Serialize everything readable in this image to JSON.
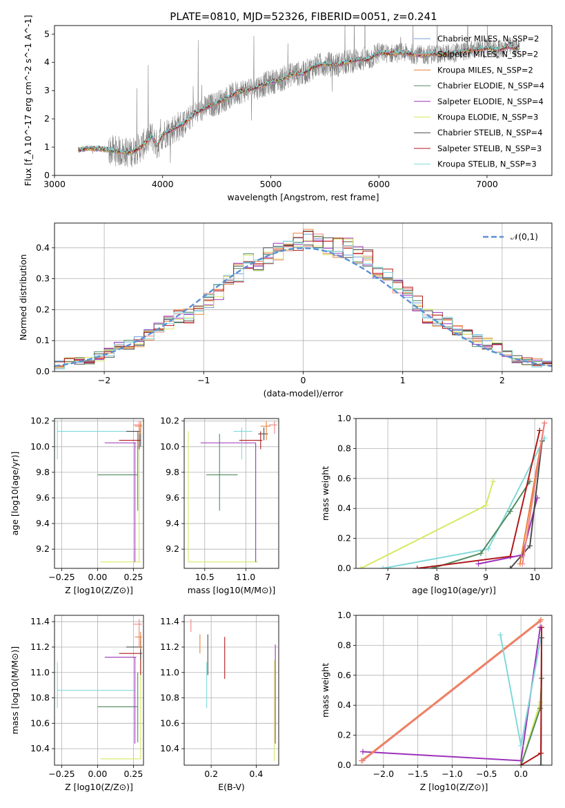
{
  "figure_title": "PLATE=0810, MJD=52326, FIBERID=0051, z=0.241",
  "colors": {
    "chabrier_miles": "#6f9fd8",
    "salpeter_miles": "#f08080",
    "kroupa_miles": "#e8823a",
    "chabrier_elodie": "#4e8a5e",
    "salpeter_elodie": "#9b30b8",
    "kroupa_elodie": "#d8e860",
    "chabrier_stelib": "#4a4a4a",
    "salpeter_stelib": "#b01818",
    "kroupa_stelib": "#80d8d8",
    "data_spectrum": "#808080",
    "normal_curve": "#5b8fd6"
  },
  "chart_data": [
    {
      "id": "spectrum",
      "type": "line",
      "title": "PLATE=0810, MJD=52326, FIBERID=0051, z=0.241",
      "xlabel": "wavelength [Angstrom, rest frame]",
      "ylabel": "Flux [f_λ 10^-17 erg cm^-2 s^-1 A^-1]",
      "xlim": [
        3000,
        7600
      ],
      "ylim": [
        0,
        5.3
      ],
      "xticks": [
        "3000",
        "4000",
        "5000",
        "6000",
        "7000"
      ],
      "yticks": [
        "0",
        "1",
        "2",
        "3",
        "4",
        "5"
      ],
      "legend_position": "right",
      "legend": [
        "Chabrier MILES, N_SSP=2",
        "Salpeter MILES, N_SSP=2",
        "Kroupa MILES, N_SSP=2",
        "Chabrier ELODIE, N_SSP=4",
        "Salpeter ELODIE, N_SSP=4",
        "Kroupa ELODIE, N_SSP=3",
        "Chabrier STELIB, N_SSP=4",
        "Salpeter STELIB, N_SSP=3",
        "Kroupa STELIB, N_SSP=3"
      ],
      "model_continuum": {
        "x": [
          3220,
          3300,
          3400,
          3500,
          3600,
          3700,
          3800,
          3900,
          3950,
          4000,
          4100,
          4200,
          4300,
          4400,
          4500,
          4600,
          4700,
          4800,
          4900,
          5000,
          5100,
          5200,
          5300,
          5400,
          5500,
          5600,
          5700,
          5800,
          5900,
          6000,
          6100,
          6200,
          6300,
          6400,
          6500,
          6600,
          6700,
          6800,
          6900,
          7000,
          7100,
          7200,
          7300
        ],
        "y": [
          0.9,
          0.95,
          0.95,
          0.9,
          0.85,
          0.8,
          1.0,
          1.4,
          1.05,
          1.45,
          1.65,
          1.85,
          2.2,
          2.4,
          2.55,
          2.75,
          2.95,
          3.05,
          3.15,
          3.3,
          3.4,
          3.6,
          3.6,
          3.85,
          3.95,
          3.9,
          4.0,
          4.1,
          4.1,
          4.35,
          4.3,
          4.35,
          4.3,
          4.25,
          4.3,
          4.3,
          4.35,
          4.4,
          4.45,
          4.5,
          4.45,
          4.55,
          4.5
        ]
      }
    },
    {
      "id": "residuals",
      "type": "histogram",
      "xlabel": "(data-model)/error",
      "ylabel": "Normed distribution",
      "xlim": [
        -2.5,
        2.5
      ],
      "ylim": [
        0,
        0.48
      ],
      "xticks": [
        "−2",
        "−1",
        "0",
        "1",
        "2"
      ],
      "yticks": [
        "0.0",
        "0.1",
        "0.2",
        "0.3",
        "0.4"
      ],
      "legend": [
        "𝒩(0,1)"
      ],
      "legend_position": "upper right",
      "bin_edges": [
        -2.5,
        -2.4,
        -2.3,
        -2.2,
        -2.1,
        -2.0,
        -1.9,
        -1.8,
        -1.7,
        -1.6,
        -1.5,
        -1.4,
        -1.3,
        -1.2,
        -1.1,
        -1.0,
        -0.9,
        -0.8,
        -0.7,
        -0.6,
        -0.5,
        -0.4,
        -0.3,
        -0.2,
        -0.1,
        0.0,
        0.1,
        0.2,
        0.3,
        0.4,
        0.5,
        0.6,
        0.7,
        0.8,
        0.9,
        1.0,
        1.1,
        1.2,
        1.3,
        1.4,
        1.5,
        1.6,
        1.7,
        1.8,
        1.9,
        2.0,
        2.1,
        2.2,
        2.3,
        2.4,
        2.5
      ],
      "base_values": [
        0.02,
        0.03,
        0.04,
        0.04,
        0.05,
        0.06,
        0.08,
        0.09,
        0.1,
        0.12,
        0.14,
        0.16,
        0.18,
        0.18,
        0.2,
        0.23,
        0.26,
        0.3,
        0.32,
        0.36,
        0.35,
        0.38,
        0.39,
        0.4,
        0.42,
        0.43,
        0.42,
        0.41,
        0.4,
        0.4,
        0.38,
        0.37,
        0.33,
        0.31,
        0.28,
        0.25,
        0.22,
        0.18,
        0.17,
        0.16,
        0.14,
        0.12,
        0.1,
        0.09,
        0.08,
        0.06,
        0.04,
        0.03,
        0.03,
        0.02
      ]
    },
    {
      "id": "age_vs_Z",
      "type": "errorbar",
      "xlabel": "Z [log10(Z/Z⊙)]",
      "ylabel": "age [log10(age/yr)]",
      "xlim": [
        -0.3,
        0.32
      ],
      "ylim": [
        9.05,
        10.22
      ],
      "xticks": [
        "−0.25",
        "0.00",
        "0.25"
      ],
      "yticks": [
        "9.2",
        "9.4",
        "9.6",
        "9.8",
        "10.0",
        "10.2"
      ]
    },
    {
      "id": "age_vs_mass",
      "type": "errorbar",
      "xlabel": "mass [log10(M/M⊙)]",
      "ylabel": "",
      "xlim": [
        10.25,
        11.4
      ],
      "ylim": [
        9.05,
        10.22
      ],
      "xticks": [
        "10.5",
        "11.0"
      ],
      "yticks": [
        "9.2",
        "9.4",
        "9.6",
        "9.8",
        "10.0",
        "10.2"
      ]
    },
    {
      "id": "massweight_vs_age",
      "type": "line",
      "xlabel": "age [log10(age/yr)]",
      "ylabel": "mass weight",
      "xlim": [
        6.35,
        10.35
      ],
      "ylim": [
        0,
        1.0
      ],
      "xticks": [
        "7",
        "8",
        "9",
        "10"
      ],
      "yticks": [
        "0.0",
        "0.2",
        "0.4",
        "0.6",
        "0.8",
        "1.0"
      ]
    },
    {
      "id": "mass_vs_Z",
      "type": "errorbar",
      "xlabel": "Z [log10(Z/Z⊙)]",
      "ylabel": "mass [log10(M/M⊙)]",
      "xlim": [
        -0.3,
        0.32
      ],
      "ylim": [
        10.27,
        11.45
      ],
      "xticks": [
        "−0.25",
        "0.00",
        "0.25"
      ],
      "yticks": [
        "10.4",
        "10.6",
        "10.8",
        "11.0",
        "11.2",
        "11.4"
      ]
    },
    {
      "id": "mass_vs_ebv",
      "type": "errorbar",
      "xlabel": "E(B-V)",
      "ylabel": "",
      "xlim": [
        0.08,
        0.5
      ],
      "ylim": [
        10.27,
        11.45
      ],
      "xticks": [
        "0.2",
        "0.4"
      ],
      "yticks": [
        "10.4",
        "10.6",
        "10.8",
        "11.0",
        "11.2",
        "11.4"
      ]
    },
    {
      "id": "massweight_vs_Z",
      "type": "line",
      "xlabel": "Z [log10(Z/Z⊙)]",
      "ylabel": "mass weight",
      "xlim": [
        -2.4,
        0.45
      ],
      "ylim": [
        0,
        1.0
      ],
      "xticks": [
        "−2.0",
        "−1.5",
        "−1.0",
        "−0.5",
        "0.0"
      ],
      "yticks": [
        "0.0",
        "0.2",
        "0.4",
        "0.6",
        "0.8",
        "1.0"
      ]
    }
  ]
}
